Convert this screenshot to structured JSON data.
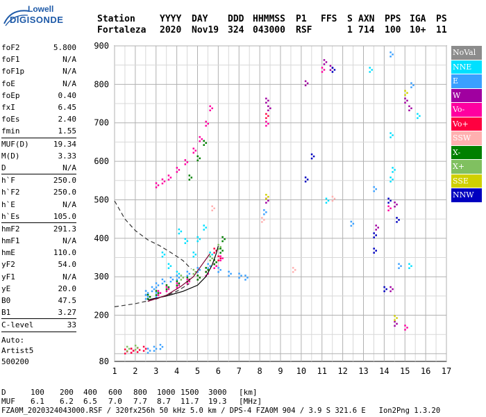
{
  "logo": {
    "line1": "Lowell",
    "line2": "DIGISONDE"
  },
  "header": {
    "columns": [
      "Station",
      "YYYY",
      "DAY",
      "DDD",
      "HHMMSS",
      "P1",
      "FFS",
      "S",
      "AXN",
      "PPS",
      "IGA",
      "PS"
    ],
    "values": [
      "Fortaleza",
      "2020",
      "Nov19",
      "324",
      "043000",
      "RSF",
      "",
      "1",
      "714",
      "100",
      "10+",
      "11"
    ]
  },
  "parameters": {
    "group1": [
      {
        "name": "foF2",
        "value": "5.800"
      },
      {
        "name": "foF1",
        "value": "N/A"
      },
      {
        "name": "foF1p",
        "value": "N/A"
      },
      {
        "name": "foE",
        "value": "N/A"
      },
      {
        "name": "foEp",
        "value": "0.40"
      },
      {
        "name": "fxI",
        "value": "6.45"
      },
      {
        "name": "foEs",
        "value": "2.40"
      },
      {
        "name": "fmin",
        "value": "1.55"
      }
    ],
    "group2": [
      {
        "name": "MUF(D)",
        "value": "19.34"
      },
      {
        "name": "M(D)",
        "value": "3.33"
      },
      {
        "name": "D",
        "value": "N/A"
      }
    ],
    "group3": [
      {
        "name": "h`F",
        "value": "250.0"
      },
      {
        "name": "h`F2",
        "value": "250.0"
      },
      {
        "name": "h`E",
        "value": "N/A"
      },
      {
        "name": "h`Es",
        "value": "105.0"
      }
    ],
    "group4": [
      {
        "name": "hmF2",
        "value": "291.3"
      },
      {
        "name": "hmF1",
        "value": "N/A"
      },
      {
        "name": "hmE",
        "value": "110.0"
      },
      {
        "name": "yF2",
        "value": "54.0"
      },
      {
        "name": "yF1",
        "value": "N/A"
      },
      {
        "name": "yE",
        "value": "20.0"
      },
      {
        "name": "B0",
        "value": "47.5"
      },
      {
        "name": "B1",
        "value": "3.27"
      }
    ],
    "group5": [
      {
        "name": "C-level",
        "value": "33"
      }
    ],
    "extra": [
      "Auto:",
      "Artist5",
      "500200"
    ]
  },
  "legend": [
    {
      "label": "NoVal",
      "color": "#8c8c8c"
    },
    {
      "label": "NNE",
      "color": "#00e0ff"
    },
    {
      "label": "E",
      "color": "#3aa0ff"
    },
    {
      "label": "W",
      "color": "#a000a0"
    },
    {
      "label": "Vo-",
      "color": "#ff00a0"
    },
    {
      "label": "Vo+",
      "color": "#ff0040"
    },
    {
      "label": "SSW",
      "color": "#ffb0b0"
    },
    {
      "label": "X-",
      "color": "#008000"
    },
    {
      "label": "X+",
      "color": "#80c060"
    },
    {
      "label": "SSE",
      "color": "#d0d000"
    },
    {
      "label": "NNW",
      "color": "#0000c0"
    }
  ],
  "chart_data": {
    "type": "scatter",
    "title": "",
    "xlabel": "",
    "ylabel": "",
    "xlim": [
      1,
      17
    ],
    "ylim": [
      80,
      900
    ],
    "x_ticks": [
      1,
      2,
      3,
      4,
      5,
      6,
      7,
      8,
      9,
      10,
      11,
      12,
      13,
      14,
      15,
      16,
      17
    ],
    "y_ticks": [
      80,
      200,
      300,
      400,
      500,
      600,
      700,
      800,
      900
    ],
    "grid": true,
    "series": [
      {
        "name": "NNE",
        "color": "#00e0ff",
        "points": [
          [
            4.1,
            420
          ],
          [
            4.4,
            395
          ],
          [
            4.8,
            360
          ],
          [
            5.0,
            400
          ],
          [
            5.3,
            430
          ],
          [
            5.6,
            360
          ],
          [
            3.3,
            360
          ],
          [
            3.6,
            330
          ],
          [
            4.0,
            310
          ],
          [
            14.3,
            670
          ],
          [
            14.4,
            580
          ],
          [
            15.6,
            720
          ],
          [
            13.3,
            840
          ],
          [
            11.2,
            500
          ],
          [
            14.3,
            555
          ],
          [
            15.2,
            330
          ]
        ]
      },
      {
        "name": "E",
        "color": "#3aa0ff",
        "points": [
          [
            2.5,
            260
          ],
          [
            2.8,
            270
          ],
          [
            3.0,
            280
          ],
          [
            3.3,
            290
          ],
          [
            3.7,
            295
          ],
          [
            4.0,
            300
          ],
          [
            4.5,
            310
          ],
          [
            5.0,
            320
          ],
          [
            5.5,
            330
          ],
          [
            6.0,
            320
          ],
          [
            6.5,
            310
          ],
          [
            7.0,
            305
          ],
          [
            7.3,
            300
          ],
          [
            2.5,
            250
          ],
          [
            3.0,
            255
          ],
          [
            2.6,
            110
          ],
          [
            2.9,
            115
          ],
          [
            3.2,
            120
          ],
          [
            8.2,
            470
          ],
          [
            12.4,
            440
          ],
          [
            13.5,
            530
          ],
          [
            14.7,
            330
          ],
          [
            15.3,
            800
          ],
          [
            14.3,
            880
          ]
        ]
      },
      {
        "name": "W",
        "color": "#a000a0",
        "points": [
          [
            11.1,
            860
          ],
          [
            11.4,
            845
          ],
          [
            10.2,
            805
          ],
          [
            8.3,
            760
          ],
          [
            8.4,
            740
          ],
          [
            13.6,
            430
          ],
          [
            14.5,
            490
          ],
          [
            15.0,
            760
          ],
          [
            15.2,
            740
          ],
          [
            8.3,
            500
          ],
          [
            14.3,
            270
          ],
          [
            14.5,
            180
          ]
        ]
      },
      {
        "name": "Vo-",
        "color": "#ff00a0",
        "points": [
          [
            3.0,
            540
          ],
          [
            3.3,
            550
          ],
          [
            3.6,
            560
          ],
          [
            4.0,
            580
          ],
          [
            4.4,
            600
          ],
          [
            4.8,
            630
          ],
          [
            5.1,
            660
          ],
          [
            5.4,
            700
          ],
          [
            5.6,
            740
          ],
          [
            3.1,
            260
          ],
          [
            3.5,
            270
          ],
          [
            4.0,
            280
          ],
          [
            4.5,
            290
          ],
          [
            5.0,
            300
          ],
          [
            5.4,
            310
          ],
          [
            5.8,
            330
          ],
          [
            6.1,
            350
          ],
          [
            8.3,
            700
          ],
          [
            11.0,
            840
          ],
          [
            14.2,
            480
          ],
          [
            15.0,
            170
          ],
          [
            1.8,
            110
          ]
        ]
      },
      {
        "name": "Vo+",
        "color": "#ff0040",
        "points": [
          [
            1.5,
            108
          ],
          [
            1.8,
            110
          ],
          [
            2.1,
            112
          ],
          [
            2.4,
            115
          ],
          [
            6.0,
            350
          ],
          [
            5.8,
            370
          ],
          [
            8.3,
            720
          ]
        ]
      },
      {
        "name": "SSW",
        "color": "#ffb0b0",
        "points": [
          [
            9.6,
            320
          ],
          [
            11.5,
            505
          ],
          [
            8.1,
            450
          ],
          [
            5.7,
            480
          ]
        ]
      },
      {
        "name": "X-",
        "color": "#008000",
        "points": [
          [
            3.5,
            275
          ],
          [
            4.0,
            285
          ],
          [
            4.5,
            295
          ],
          [
            5.0,
            300
          ],
          [
            5.4,
            320
          ],
          [
            5.8,
            340
          ],
          [
            6.1,
            370
          ],
          [
            6.2,
            400
          ],
          [
            4.6,
            560
          ],
          [
            5.0,
            610
          ],
          [
            5.3,
            650
          ],
          [
            2.6,
            250
          ],
          [
            3.0,
            260
          ]
        ]
      },
      {
        "name": "X+",
        "color": "#80c060",
        "points": [
          [
            4.2,
            300
          ],
          [
            4.8,
            315
          ],
          [
            5.6,
            350
          ],
          [
            6.0,
            380
          ],
          [
            1.6,
            115
          ],
          [
            2.0,
            118
          ]
        ]
      },
      {
        "name": "SSE",
        "color": "#d0d000",
        "points": [
          [
            14.5,
            195
          ],
          [
            15.0,
            780
          ],
          [
            8.3,
            510
          ]
        ]
      },
      {
        "name": "NNW",
        "color": "#0000c0",
        "points": [
          [
            11.5,
            840
          ],
          [
            10.5,
            615
          ],
          [
            10.2,
            555
          ],
          [
            14.2,
            500
          ],
          [
            14.6,
            450
          ],
          [
            13.5,
            370
          ],
          [
            13.5,
            410
          ],
          [
            14.0,
            270
          ]
        ]
      }
    ]
  },
  "footer": {
    "d_label": "D",
    "d_values": [
      "100",
      "200",
      "400",
      "600",
      "800",
      "1000",
      "1500",
      "3000",
      "[km]"
    ],
    "muf_label": "MUF",
    "muf_values": [
      "6.1",
      "6.2",
      "6.5",
      "7.0",
      "7.7",
      "8.7",
      "11.7",
      "19.3",
      "[MHz]"
    ],
    "file_line": "FZA0M_2020324043000.RSF / 320fx256h 50 kHz 5.0 km / DPS-4 FZA0M 904 / 3.9 S 321.6 E   Ion2Png 1.3.20"
  }
}
